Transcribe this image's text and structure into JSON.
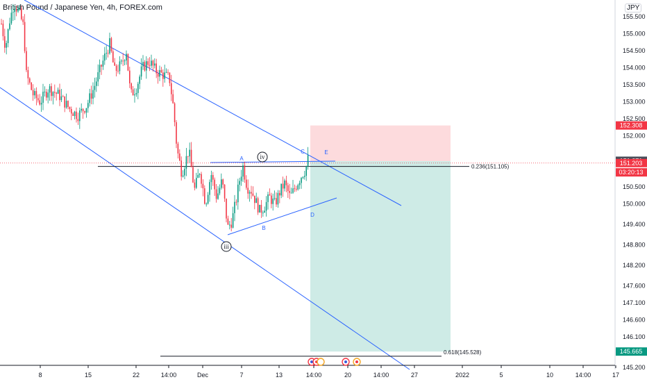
{
  "header": {
    "title": "British Pound / Japanese Yen, 4h, FOREX.com",
    "currency": "JPY"
  },
  "chart_data": {
    "type": "candlestick",
    "symbol": "GBPJPY",
    "timeframe": "4h",
    "ylim": [
      145.1,
      156.1
    ],
    "y_ticks": [
      "155.500",
      "155.000",
      "154.500",
      "154.000",
      "153.500",
      "153.000",
      "152.500",
      "152.000",
      "150.500",
      "150.000",
      "149.400",
      "148.800",
      "148.200",
      "147.600",
      "147.100",
      "146.600",
      "146.100",
      "145.200"
    ],
    "x_ticks": [
      "8",
      "15",
      "22",
      "14:00",
      "Dec",
      "7",
      "13",
      "14:00",
      "20",
      "14:00",
      "27",
      "2022",
      "5",
      "10",
      "14:00",
      "17"
    ],
    "price_badges": [
      {
        "label": "152.308",
        "value": 152.308,
        "color": "#f23645"
      },
      {
        "label": "151.271",
        "value": 151.271,
        "color": "#4a4e5a"
      },
      {
        "label": "151.203",
        "value": 151.203,
        "color": "#f23645"
      },
      {
        "label": "03:20:13",
        "value": 150.93,
        "color": "#f23645"
      },
      {
        "label": "145.665",
        "value": 145.665,
        "color": "#089981"
      }
    ],
    "fib_levels": [
      {
        "label": "0.236(151.105)",
        "value": 151.105
      },
      {
        "label": "0.618(145.528)",
        "value": 145.528
      }
    ],
    "wave_labels": [
      "A",
      "B",
      "C",
      "D",
      "E"
    ],
    "circle_labels": [
      "iv",
      "iii"
    ],
    "position": {
      "type": "short",
      "entry": 151.26,
      "stop": 152.308,
      "target": 145.665
    }
  }
}
